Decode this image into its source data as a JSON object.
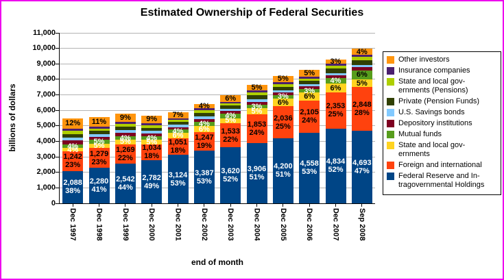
{
  "page": {
    "border_color": "#ee00ee",
    "background": "#ffffff"
  },
  "chart_data": {
    "type": "bar",
    "stacked": true,
    "title": "Estimated Ownership of Federal Securities",
    "xlabel": "end of month",
    "ylabel": "billions of dollars",
    "ylim": [
      0,
      11000
    ],
    "ytick_interval": 1000,
    "ytick_labels": [
      "0",
      "1,000",
      "2,000",
      "3,000",
      "4,000",
      "5,000",
      "6,000",
      "7,000",
      "8,000",
      "9,000",
      "10,000",
      "11,000"
    ],
    "grid": true,
    "legend_position": "right",
    "categories": [
      "Dec 1997",
      "Dec 1998",
      "Dec 1999",
      "Dec 2000",
      "Dec 2001",
      "Dec 2002",
      "Dec 2003",
      "Dec 2004",
      "Dec 2005",
      "Dec 2006",
      "Dec 2007",
      "Sep 2008"
    ],
    "totals_billions": [
      5494,
      5561,
      5777,
      5678,
      5894,
      6391,
      6962,
      7659,
      8235,
      8600,
      9296,
      9985
    ],
    "series": [
      {
        "name": "Federal Reserve and Intragovernmental Holdings",
        "color": "#004586",
        "label_style": "value_percent",
        "label_color": "#ffffff",
        "values": [
          2088,
          2280,
          2542,
          2782,
          3124,
          3387,
          3620,
          3906,
          4200,
          4558,
          4834,
          4693
        ],
        "percents": [
          38,
          41,
          44,
          49,
          53,
          53,
          52,
          51,
          51,
          53,
          52,
          47
        ]
      },
      {
        "name": "Foreign and international",
        "color": "#FF420E",
        "label_style": "value_percent",
        "label_color": "#000000",
        "values": [
          1242,
          1279,
          1269,
          1034,
          1051,
          1247,
          1533,
          1853,
          2036,
          2105,
          2353,
          2848
        ],
        "percents": [
          23,
          23,
          22,
          18,
          18,
          19,
          22,
          24,
          25,
          24,
          25,
          28
        ]
      },
      {
        "name": "State and local governments",
        "color": "#FFD320",
        "label_style": "percent",
        "label_colors": [
          "#ffffff",
          "#ffffff",
          "#ffffff",
          "#ffffff",
          "#ffffff",
          "#ffffff",
          "#ffffff",
          "#ffffff",
          "#000000",
          "#000000",
          "#000000",
          "#000000"
        ],
        "percents": [
          4,
          5,
          5,
          5,
          6,
          6,
          5,
          5,
          6,
          6,
          6,
          5
        ]
      },
      {
        "name": "Mutual funds",
        "color": "#579D1C",
        "label_style": "percent",
        "label_colors": [
          "#ffffff",
          "#ffffff",
          "#ffffff",
          "#ffffff",
          "#ffffff",
          "#ffffff",
          "#ffffff",
          "#ffffff",
          "#ffffff",
          "#ffffff",
          "#ffffff",
          "#000000"
        ],
        "percents": [
          4,
          5,
          4,
          4,
          4,
          4,
          4,
          3,
          3,
          3,
          4,
          6
        ]
      },
      {
        "name": "Depository institutions",
        "color": "#7E0021",
        "label_style": "none",
        "percents_estimated": true,
        "percents": [
          5,
          3.5,
          3.5,
          3.5,
          2.5,
          3,
          2.5,
          2.5,
          2,
          2,
          2,
          2
        ]
      },
      {
        "name": "U.S. Savings bonds",
        "color": "#83CAFF",
        "label_style": "none",
        "percents_estimated": true,
        "percents": [
          3.5,
          3,
          3,
          3,
          2.5,
          2.5,
          2,
          2,
          1.5,
          1.5,
          1.5,
          1.5
        ]
      },
      {
        "name": "Private (Pension Funds)",
        "color": "#314004",
        "label_style": "none",
        "percents_estimated": true,
        "percents": [
          4,
          3.5,
          4,
          3.5,
          3,
          3.5,
          3,
          3.5,
          3,
          2.5,
          3,
          3
        ]
      },
      {
        "name": "State and local governments (Pensions)",
        "color": "#AECF00",
        "label_style": "none",
        "percents_estimated": true,
        "percents": [
          3.5,
          3,
          3.5,
          3,
          2.5,
          3,
          2,
          2.5,
          2,
          1.5,
          2,
          2
        ]
      },
      {
        "name": "Insurance companies",
        "color": "#4B1F6F",
        "label_style": "none",
        "percents_estimated": true,
        "percents": [
          3,
          2,
          2,
          2,
          1.5,
          2,
          1.5,
          1.5,
          1.5,
          1.5,
          1.5,
          1.5
        ]
      },
      {
        "name": "Other investors",
        "color": "#FF950E",
        "label_style": "percent",
        "label_color": "#000000",
        "percents": [
          12,
          11,
          9,
          9,
          7,
          4,
          6,
          5,
          5,
          5,
          3,
          4
        ]
      }
    ],
    "legend": [
      {
        "color": "#FF950E",
        "lines": [
          "Other investors"
        ]
      },
      {
        "color": "#4B1F6F",
        "lines": [
          "Insurance companies"
        ]
      },
      {
        "color": "#AECF00",
        "lines": [
          "State and local gov-",
          "ernments (Pensions)"
        ]
      },
      {
        "color": "#314004",
        "lines": [
          "Private (Pension Funds)"
        ]
      },
      {
        "color": "#83CAFF",
        "lines": [
          "U.S. Savings bonds"
        ]
      },
      {
        "color": "#7E0021",
        "lines": [
          "Depository institutions"
        ]
      },
      {
        "color": "#579D1C",
        "lines": [
          "Mutual funds"
        ]
      },
      {
        "color": "#FFD320",
        "lines": [
          "State and local gov-",
          "ernments"
        ]
      },
      {
        "color": "#FF420E",
        "lines": [
          "Foreign and international"
        ]
      },
      {
        "color": "#004586",
        "lines": [
          "Federal Reserve and In-",
          "tragovernmental Holdings"
        ]
      }
    ]
  }
}
